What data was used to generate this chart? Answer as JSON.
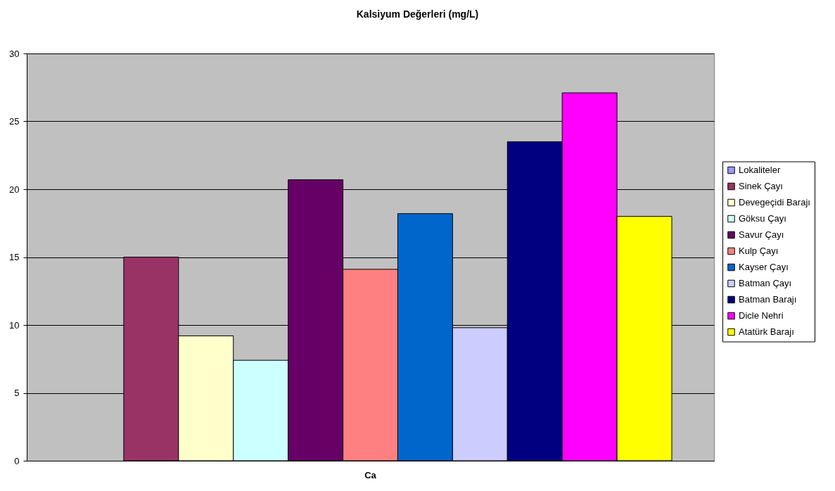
{
  "chart_data": {
    "type": "bar",
    "title": "Kalsiyum Değerleri (mg/L)",
    "categories": [
      "Ca"
    ],
    "series": [
      {
        "name": "Lokaliteler",
        "color": "#9999ff",
        "values": [
          null
        ]
      },
      {
        "name": "Sinek Çayı",
        "color": "#993366",
        "values": [
          15.0
        ]
      },
      {
        "name": "Devegeçidi Barajı",
        "color": "#ffffcc",
        "values": [
          9.2
        ]
      },
      {
        "name": "Göksu Çayı",
        "color": "#ccffff",
        "values": [
          7.4
        ]
      },
      {
        "name": "Savur Çayı",
        "color": "#660066",
        "values": [
          20.7
        ]
      },
      {
        "name": "Kulp Çayı",
        "color": "#ff8080",
        "values": [
          14.1
        ]
      },
      {
        "name": "Kayser Çayı",
        "color": "#0066cc",
        "values": [
          18.2
        ]
      },
      {
        "name": "Batman Çayı",
        "color": "#ccccff",
        "values": [
          9.8
        ]
      },
      {
        "name": "Batman Barajı",
        "color": "#000080",
        "values": [
          23.5
        ]
      },
      {
        "name": "Dicle Nehri",
        "color": "#ff00ff",
        "values": [
          27.1
        ]
      },
      {
        "name": "Atatürk Barajı",
        "color": "#ffff00",
        "values": [
          18.0
        ]
      }
    ],
    "ylim": [
      0,
      30
    ],
    "yticks": [
      0,
      5,
      10,
      15,
      20,
      25,
      30
    ],
    "grid": "y",
    "legend": "right"
  }
}
